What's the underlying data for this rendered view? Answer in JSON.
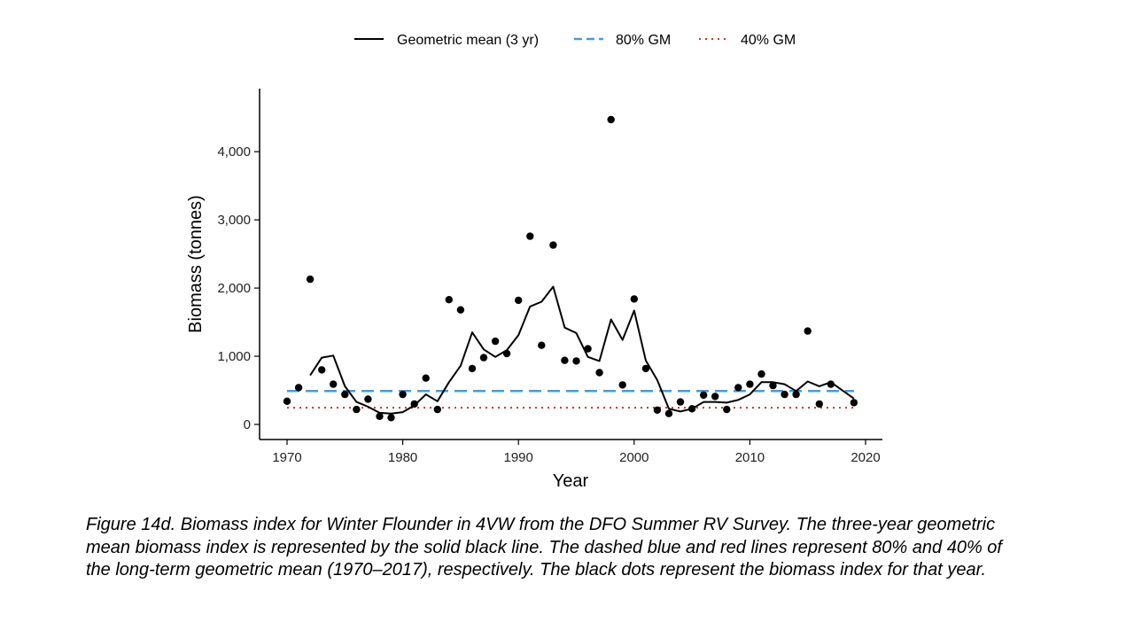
{
  "chart_data": {
    "type": "scatter",
    "xlabel": "Year",
    "ylabel": "Biomass (tonnes)",
    "xlim": [
      1970,
      2020
    ],
    "ylim": [
      0,
      4600
    ],
    "x_ticks": [
      1970,
      1980,
      1990,
      2000,
      2010,
      2020
    ],
    "x_tick_labels": [
      "1970",
      "1980",
      "1990",
      "2000",
      "2010",
      "2020"
    ],
    "y_ticks": [
      0,
      1000,
      2000,
      3000,
      4000
    ],
    "y_tick_labels": [
      "0",
      "1,000",
      "2,000",
      "3,000",
      "4,000"
    ],
    "legend_position": "top",
    "legend": [
      {
        "label": "Geometric mean (3 yr)",
        "style": "solid",
        "color": "#000000"
      },
      {
        "label": "80% GM",
        "style": "dashed",
        "color": "#4a9bd4"
      },
      {
        "label": "40% GM",
        "style": "dotted",
        "color": "#c0392b"
      }
    ],
    "annual_index": {
      "x": [
        1970,
        1971,
        1972,
        1973,
        1974,
        1975,
        1976,
        1977,
        1978,
        1979,
        1980,
        1981,
        1982,
        1983,
        1984,
        1985,
        1986,
        1987,
        1988,
        1989,
        1990,
        1991,
        1992,
        1993,
        1994,
        1995,
        1996,
        1997,
        1998,
        1999,
        2000,
        2001,
        2002,
        2003,
        2004,
        2005,
        2006,
        2007,
        2008,
        2009,
        2010,
        2011,
        2012,
        2013,
        2014,
        2015,
        2016,
        2017,
        2019
      ],
      "y": [
        340,
        540,
        2130,
        800,
        590,
        440,
        220,
        370,
        120,
        100,
        440,
        300,
        680,
        220,
        1830,
        1680,
        820,
        980,
        1220,
        1040,
        1820,
        2760,
        1160,
        2630,
        940,
        930,
        1110,
        760,
        4470,
        580,
        1840,
        820,
        210,
        160,
        330,
        230,
        430,
        410,
        220,
        540,
        590,
        740,
        570,
        440,
        440,
        1370,
        300,
        590,
        320
      ]
    },
    "geometric_mean_3yr": {
      "x": [
        1972,
        1973,
        1974,
        1975,
        1976,
        1977,
        1978,
        1979,
        1980,
        1981,
        1982,
        1983,
        1984,
        1985,
        1986,
        1987,
        1988,
        1989,
        1990,
        1991,
        1992,
        1993,
        1994,
        1995,
        1996,
        1997,
        1998,
        1999,
        2000,
        2001,
        2002,
        2003,
        2004,
        2005,
        2006,
        2007,
        2008,
        2009,
        2010,
        2011,
        2012,
        2013,
        2014,
        2015,
        2016,
        2017,
        2019
      ],
      "y": [
        720,
        980,
        1010,
        560,
        330,
        260,
        170,
        160,
        180,
        280,
        440,
        340,
        620,
        860,
        1350,
        1100,
        990,
        1090,
        1310,
        1730,
        1800,
        2020,
        1420,
        1340,
        990,
        930,
        1540,
        1240,
        1670,
        940,
        650,
        230,
        190,
        230,
        330,
        330,
        320,
        360,
        440,
        620,
        620,
        590,
        490,
        630,
        560,
        620,
        380
      ]
    },
    "reference_80_gm": 490,
    "reference_40_gm": 245
  },
  "caption": "Figure 14d. Biomass index for Winter Flounder in 4VW from the DFO Summer RV Survey. The three-year geometric mean biomass index is represented by the solid black line. The dashed blue and red lines represent 80% and 40% of the long-term geometric mean (1970–2017), respectively. The black dots represent the biomass index for that year."
}
